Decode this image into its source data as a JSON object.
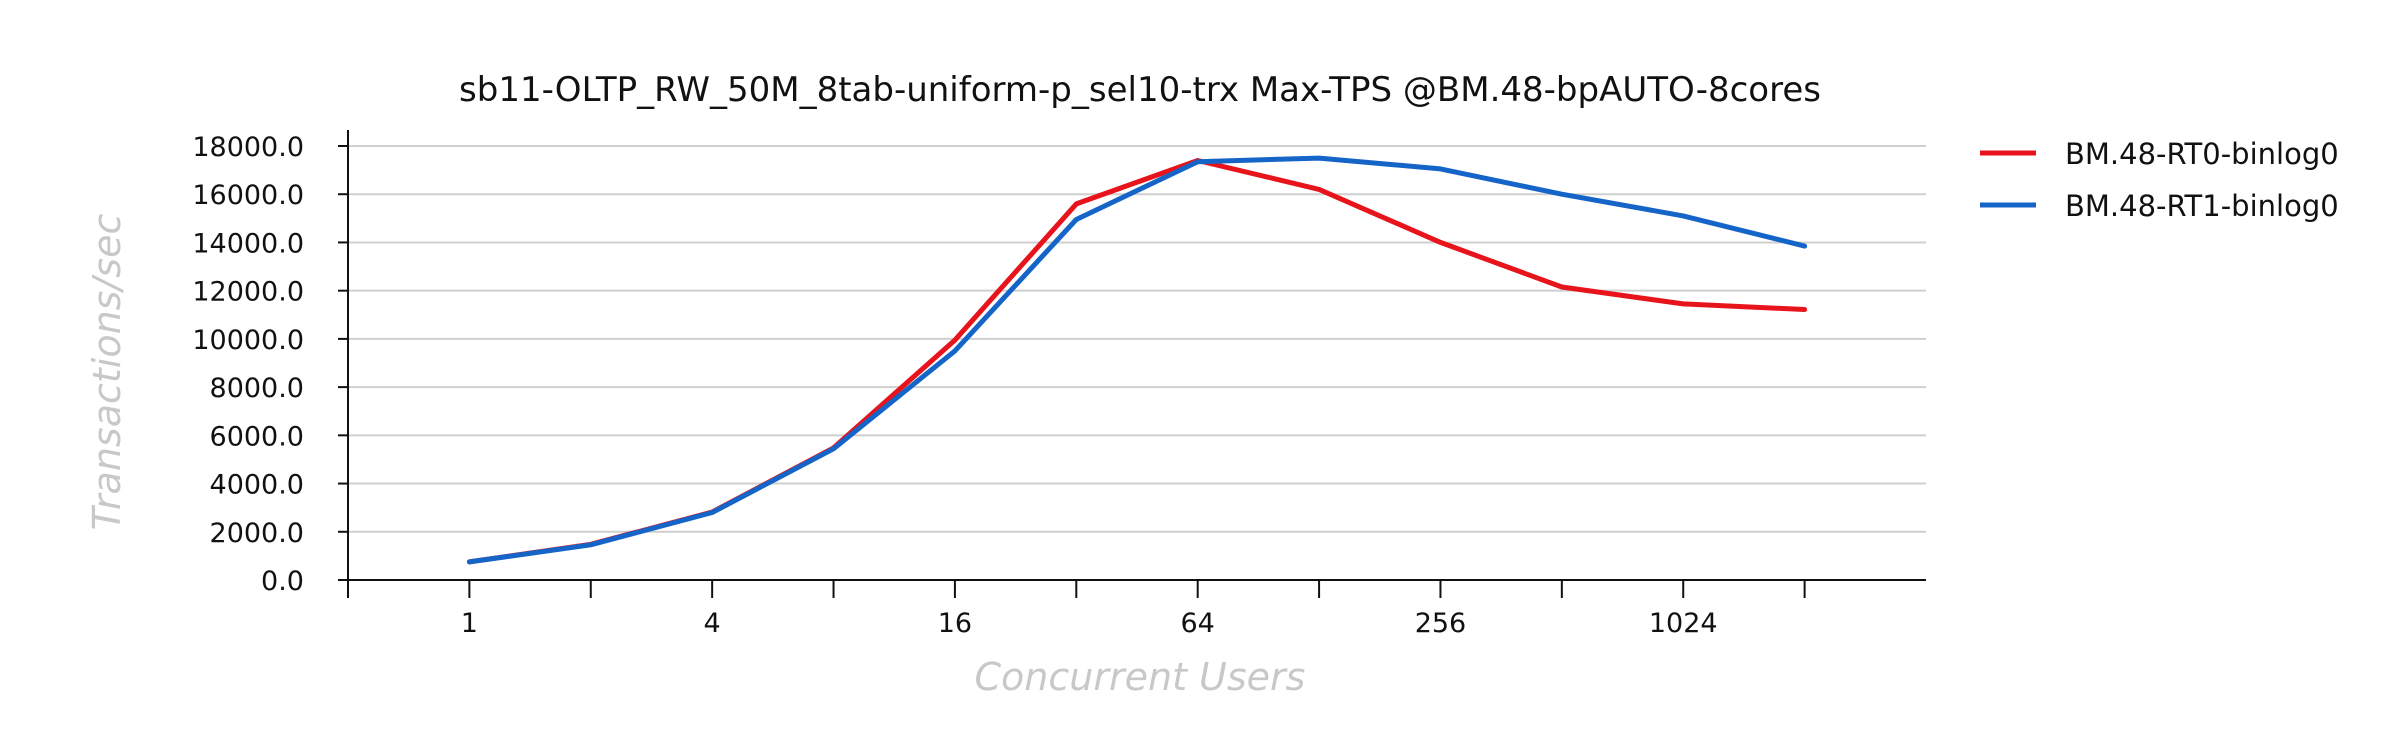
{
  "chart_data": {
    "type": "line",
    "title": "sb11-OLTP_RW_50M_8tab-uniform-p_sel10-trx Max-TPS @BM.48-bpAUTO-8cores",
    "xlabel": "Concurrent Users",
    "ylabel": "Transactions/sec",
    "x": [
      1,
      2,
      4,
      8,
      16,
      32,
      64,
      128,
      256,
      512,
      1024,
      2048
    ],
    "x_scale": "log2",
    "x_tick_labels": [
      "1",
      "4",
      "16",
      "64",
      "256",
      "1024"
    ],
    "x_tick_values": [
      1,
      4,
      16,
      64,
      256,
      1024
    ],
    "x_minor_tick_values": [
      0.5,
      2,
      8,
      32,
      128,
      512,
      2048
    ],
    "xlim": [
      0.5,
      4096
    ],
    "ylim": [
      0,
      18000
    ],
    "y_ticks": [
      0,
      2000,
      4000,
      6000,
      8000,
      10000,
      12000,
      14000,
      16000,
      18000
    ],
    "y_tick_labels": [
      "0.0",
      "2000.0",
      "4000.0",
      "6000.0",
      "8000.0",
      "10000.0",
      "12000.0",
      "14000.0",
      "16000.0",
      "18000.0"
    ],
    "grid": "horizontal",
    "legend_position": "right-top",
    "series": [
      {
        "name": "BM.48-RT0-binlog0",
        "color": "#e8141c",
        "values": [
          750,
          1480,
          2820,
          5480,
          9950,
          15600,
          17400,
          16200,
          14000,
          12150,
          11450,
          11220
        ]
      },
      {
        "name": "BM.48-RT1-binlog0",
        "color": "#1565c8",
        "values": [
          750,
          1460,
          2800,
          5440,
          9500,
          14950,
          17350,
          17500,
          17050,
          16000,
          15100,
          13850
        ]
      }
    ]
  }
}
